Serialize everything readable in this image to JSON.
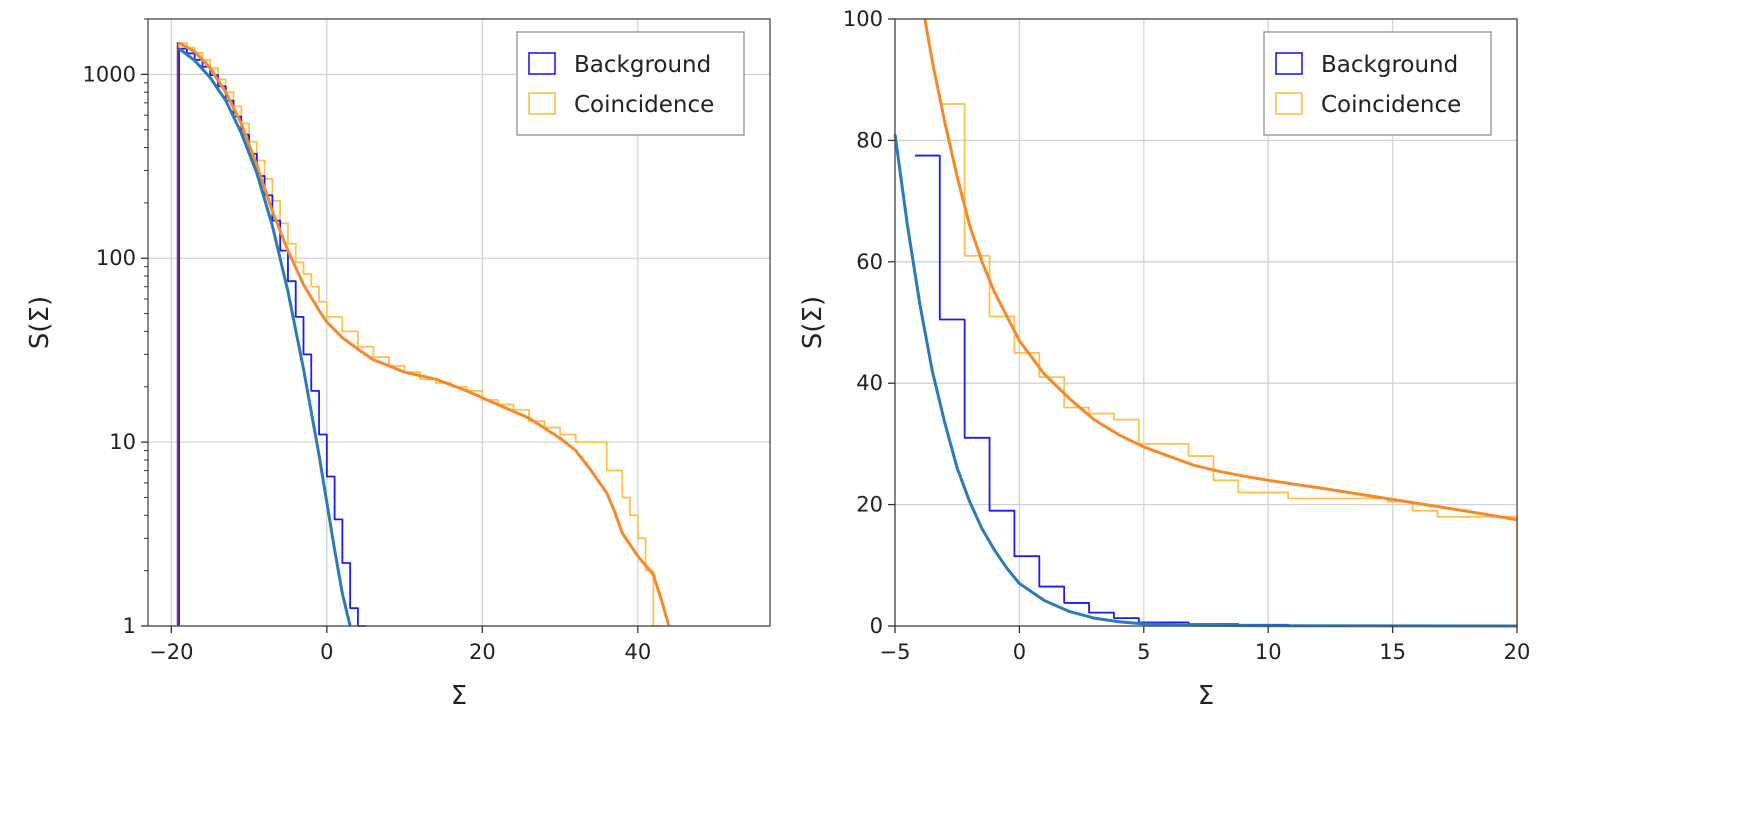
{
  "colors": {
    "background_hist": "#1a1aff",
    "coincidence_hist": "#ffc04d",
    "background_fit": "#2b7bba",
    "coincidence_fit": "#f7892a",
    "vline": "#8c3a3a",
    "grid": "#d3d3d3",
    "frame": "#555555"
  },
  "chart_data": [
    {
      "type": "line",
      "xlabel": "Σ",
      "ylabel": "S(Σ)",
      "xlim": [
        -23,
        57
      ],
      "ylim": [
        1,
        2000
      ],
      "yscale": "log",
      "grid": true,
      "legend_placement": "top-right",
      "x_ticks": [
        -20,
        0,
        20,
        40
      ],
      "x_tick_labels": [
        "−20",
        "0",
        "20",
        "40"
      ],
      "y_ticks": [
        1,
        10,
        100,
        1000
      ],
      "y_tick_labels": [
        "1",
        "10",
        "100",
        "1000"
      ],
      "vline_x": -19.2,
      "series": [
        {
          "name": "Background",
          "kind": "step-hist",
          "x": [
            -19,
            -18,
            -17,
            -16,
            -15,
            -14,
            -13,
            -12,
            -11,
            -10,
            -9,
            -8,
            -7,
            -6,
            -5,
            -4,
            -3,
            -2,
            -1,
            0,
            1,
            2,
            3,
            4
          ],
          "values": [
            1380,
            1300,
            1200,
            1100,
            990,
            860,
            720,
            590,
            470,
            370,
            280,
            220,
            160,
            110,
            75,
            48,
            30,
            19,
            11,
            6.5,
            3.8,
            2.2,
            1.25,
            1.0
          ]
        },
        {
          "name": "Coincidence",
          "kind": "step-hist",
          "x": [
            -19,
            -18,
            -17,
            -16,
            -15,
            -14,
            -13,
            -12,
            -11,
            -10,
            -9,
            -8,
            -7,
            -6,
            -5,
            -4,
            -3,
            -2,
            -1,
            0,
            2,
            4,
            6,
            8,
            10,
            12,
            14,
            16,
            18,
            20,
            22,
            24,
            26,
            28,
            30,
            32,
            34,
            36,
            37,
            38,
            39,
            40,
            41,
            42
          ],
          "values": [
            1480,
            1400,
            1310,
            1200,
            1080,
            940,
            800,
            670,
            540,
            430,
            340,
            270,
            205,
            155,
            120,
            95,
            82,
            70,
            58,
            48,
            40,
            33,
            29,
            26,
            24,
            22,
            21,
            20,
            19,
            17,
            16,
            15,
            13,
            12,
            11,
            10,
            10,
            7,
            7,
            5,
            4,
            3,
            2,
            1
          ]
        },
        {
          "name": "",
          "kind": "fit",
          "x": [
            -19,
            -17,
            -15,
            -13,
            -11,
            -9,
            -7,
            -5,
            -3,
            -1,
            1,
            2,
            3
          ],
          "values": [
            1380,
            1190,
            960,
            720,
            480,
            290,
            150,
            66,
            25,
            8.5,
            2.6,
            1.5,
            1.0
          ]
        },
        {
          "name": "",
          "kind": "fit",
          "x": [
            -19,
            -17,
            -15,
            -13,
            -11,
            -9,
            -7,
            -5,
            -3,
            -1,
            0,
            2,
            4,
            6,
            8,
            10,
            14,
            18,
            22,
            26,
            30,
            32,
            34,
            36,
            37,
            38,
            40,
            42,
            43,
            44
          ],
          "values": [
            1480,
            1330,
            1080,
            800,
            540,
            320,
            180,
            110,
            72,
            52,
            45,
            37,
            32,
            28,
            26,
            24,
            22,
            19,
            16,
            13.5,
            10.5,
            9,
            7,
            5.3,
            4.2,
            3.2,
            2.4,
            1.9,
            1.4,
            1.0
          ]
        }
      ]
    },
    {
      "type": "line",
      "xlabel": "Σ",
      "ylabel": "S(Σ)",
      "xlim": [
        -5,
        20
      ],
      "ylim": [
        0,
        100
      ],
      "grid": true,
      "legend_placement": "top-right",
      "x_ticks": [
        -5,
        0,
        5,
        10,
        15,
        20
      ],
      "x_tick_labels": [
        "−5",
        "0",
        "5",
        "10",
        "15",
        "20"
      ],
      "y_ticks": [
        0,
        20,
        40,
        60,
        80,
        100
      ],
      "y_tick_labels": [
        "0",
        "20",
        "40",
        "60",
        "80",
        "100"
      ],
      "series": [
        {
          "name": "Background",
          "kind": "step-hist",
          "x": [
            -4.2,
            -3.2,
            -2.2,
            -1.2,
            -0.2,
            0.8,
            1.8,
            2.8,
            3.8,
            4.8,
            6.8,
            8.8,
            10.8,
            12.8,
            14.8,
            16.8,
            18.8,
            20
          ],
          "values": [
            77.5,
            50.5,
            31,
            19,
            11.5,
            6.5,
            3.8,
            2.2,
            1.3,
            0.6,
            0.3,
            0.2,
            0.1,
            0.1,
            0.1,
            0.1,
            0.1,
            0.1
          ]
        },
        {
          "name": "Coincidence",
          "kind": "step-hist",
          "x": [
            -3.2,
            -2.2,
            -1.2,
            -0.2,
            0.8,
            1.8,
            2.8,
            3.8,
            4.8,
            6.8,
            7.8,
            8.8,
            10.8,
            12.8,
            14.8,
            15.8,
            16.8,
            17.8,
            20
          ],
          "values": [
            86,
            61,
            51,
            45,
            41,
            36,
            35,
            34,
            30,
            28,
            24,
            22,
            21,
            21,
            20.5,
            19,
            18,
            18,
            17.5
          ]
        },
        {
          "name": "",
          "kind": "fit",
          "x": [
            -5,
            -4.5,
            -4,
            -3.5,
            -3,
            -2.5,
            -2,
            -1.5,
            -1,
            -0.5,
            0,
            1,
            2,
            3,
            4,
            5,
            7,
            10,
            15,
            20
          ],
          "values": [
            81,
            66,
            53,
            42,
            33.5,
            26,
            20.5,
            16,
            12.5,
            9.5,
            7,
            4.2,
            2.4,
            1.3,
            0.7,
            0.35,
            0.12,
            0.05,
            0.02,
            0.01
          ]
        },
        {
          "name": "",
          "kind": "fit",
          "x": [
            -3.8,
            -3.5,
            -3,
            -2.5,
            -2,
            -1.5,
            -1,
            0,
            1,
            2,
            3,
            4,
            5,
            6,
            7,
            8,
            9,
            10,
            12,
            14,
            16,
            18,
            20
          ],
          "values": [
            100,
            93,
            83,
            74,
            66,
            60,
            55,
            47,
            41.5,
            37.5,
            34,
            31.5,
            29.5,
            28,
            26.5,
            25.5,
            24.7,
            24,
            22.8,
            21.5,
            20.2,
            18.9,
            17.5
          ]
        }
      ]
    }
  ]
}
